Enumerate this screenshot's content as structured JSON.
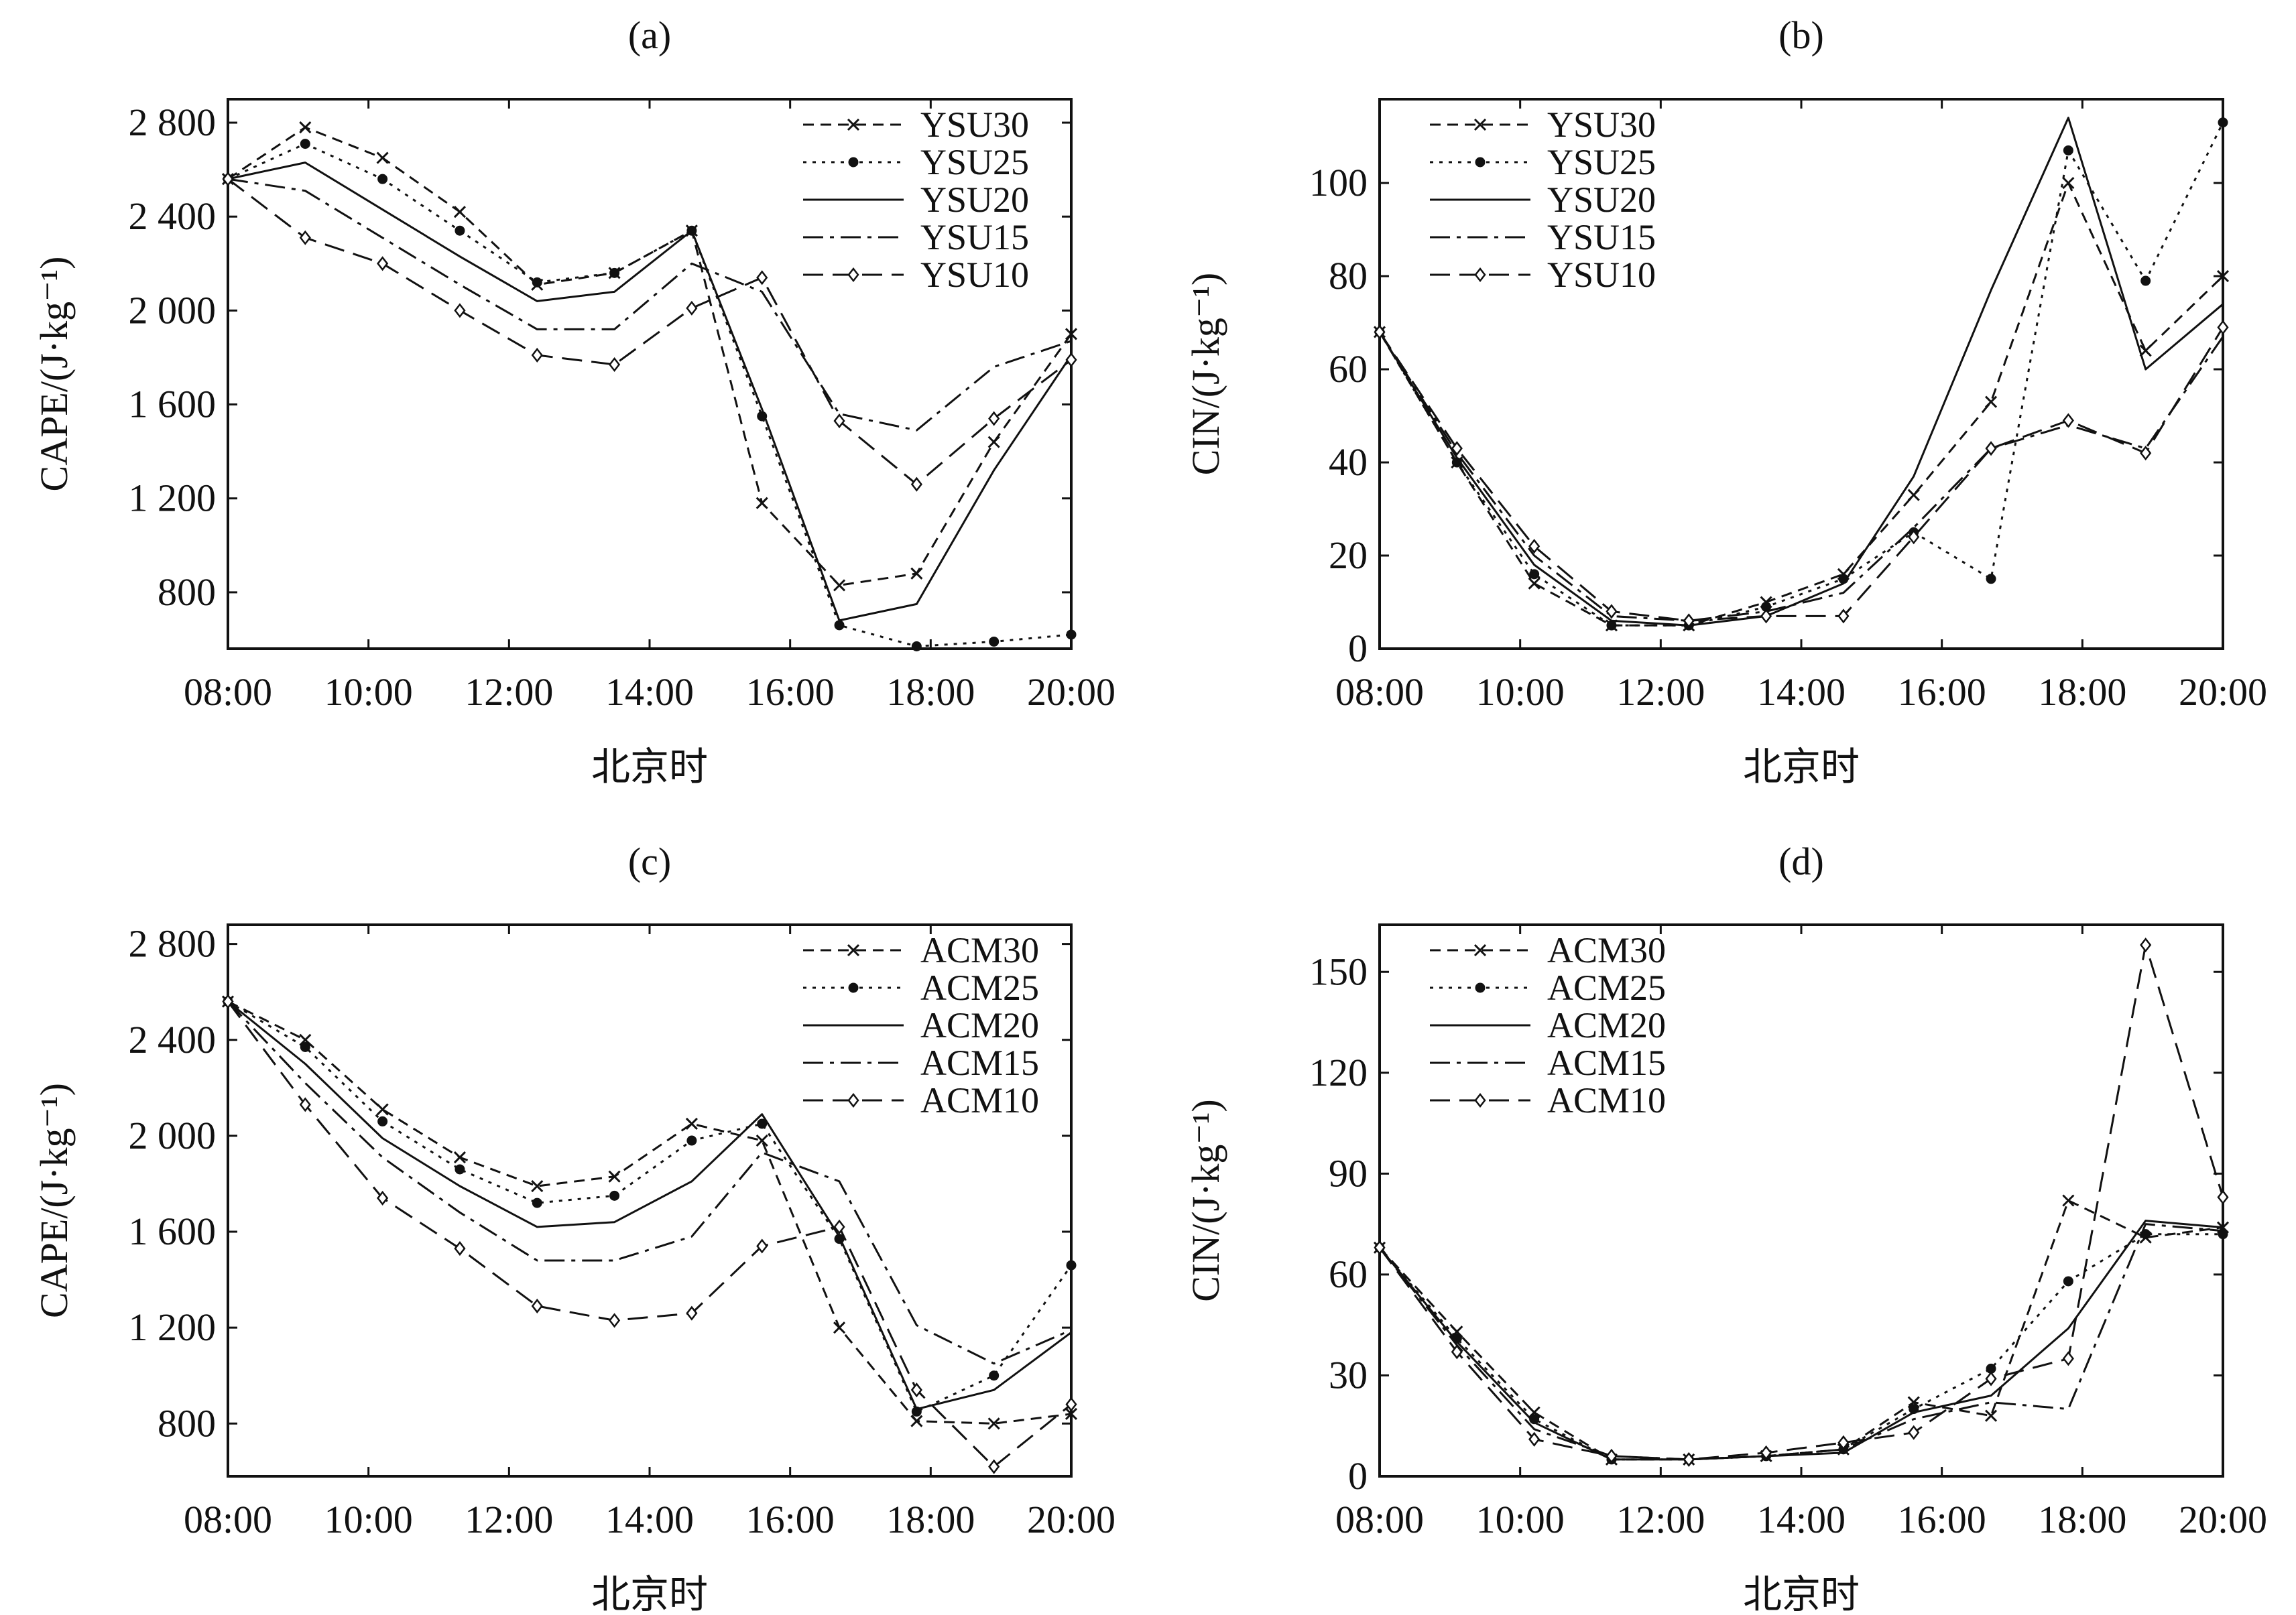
{
  "chart_data": [
    {
      "type": "line",
      "panel": "(a)",
      "xlabel": "北京时",
      "ylabel": "CAPE/(J·kg⁻¹)",
      "y_tick_labels": [
        "800",
        "1 200",
        "1 600",
        "2 000",
        "2 400",
        "2 800"
      ],
      "x_tick_labels": [
        "08:00",
        "10:00",
        "12:00",
        "14:00",
        "16:00",
        "18:00",
        "20:00"
      ],
      "xlim": [
        8,
        20
      ],
      "ylim": [
        560,
        2900
      ],
      "legend_position": "top-right",
      "x": [
        8.0,
        9.1,
        10.2,
        11.3,
        12.4,
        13.5,
        14.6,
        15.6,
        16.7,
        17.8,
        18.9,
        20.0
      ],
      "series": [
        {
          "name": "YSU30",
          "marker": "x",
          "dash": "dash-short",
          "values": [
            2560,
            2780,
            2650,
            2420,
            2110,
            2160,
            2340,
            1180,
            830,
            880,
            1440,
            1900
          ]
        },
        {
          "name": "YSU25",
          "marker": "dot",
          "dash": "dotted",
          "values": [
            2560,
            2710,
            2560,
            2340,
            2120,
            2160,
            2340,
            1550,
            660,
            570,
            590,
            620
          ]
        },
        {
          "name": "YSU20",
          "marker": "none",
          "dash": "solid",
          "values": [
            2560,
            2630,
            2430,
            2230,
            2040,
            2080,
            2340,
            1580,
            680,
            750,
            1320,
            1810
          ]
        },
        {
          "name": "YSU15",
          "marker": "none",
          "dash": "dash-dot",
          "values": [
            2560,
            2510,
            2310,
            2110,
            1920,
            1920,
            2200,
            2080,
            1560,
            1490,
            1760,
            1870
          ]
        },
        {
          "name": "YSU10",
          "marker": "diamond",
          "dash": "dash-long",
          "values": [
            2560,
            2310,
            2200,
            2000,
            1810,
            1770,
            2010,
            2140,
            1530,
            1260,
            1540,
            1790
          ]
        }
      ]
    },
    {
      "type": "line",
      "panel": "(b)",
      "xlabel": "北京时",
      "ylabel": "CIN/(J·kg⁻¹)",
      "y_tick_labels": [
        "0",
        "20",
        "40",
        "60",
        "80",
        "100"
      ],
      "x_tick_labels": [
        "08:00",
        "10:00",
        "12:00",
        "14:00",
        "16:00",
        "18:00",
        "20:00"
      ],
      "xlim": [
        8,
        20
      ],
      "ylim": [
        0,
        118
      ],
      "legend_position": "top-left",
      "x": [
        8.0,
        9.1,
        10.2,
        11.3,
        12.4,
        13.5,
        14.6,
        15.6,
        16.7,
        17.8,
        18.9,
        20.0
      ],
      "series": [
        {
          "name": "YSU30",
          "marker": "x",
          "dash": "dash-short",
          "values": [
            68,
            40,
            14,
            5,
            5,
            10,
            16,
            33,
            53,
            100,
            64,
            80
          ]
        },
        {
          "name": "YSU25",
          "marker": "dot",
          "dash": "dotted",
          "values": [
            68,
            40,
            16,
            5,
            5,
            9,
            15,
            25,
            15,
            107,
            79,
            113
          ]
        },
        {
          "name": "YSU20",
          "marker": "none",
          "dash": "solid",
          "values": [
            68,
            41,
            18,
            6,
            5,
            7,
            14,
            37,
            77,
            114,
            60,
            74
          ]
        },
        {
          "name": "YSU15",
          "marker": "none",
          "dash": "dash-dot",
          "values": [
            68,
            42,
            20,
            7,
            6,
            8,
            12,
            26,
            43,
            48,
            43,
            67
          ]
        },
        {
          "name": "YSU10",
          "marker": "diamond",
          "dash": "dash-long",
          "values": [
            68,
            43,
            22,
            8,
            6,
            7,
            7,
            24,
            43,
            49,
            42,
            69
          ]
        }
      ]
    },
    {
      "type": "line",
      "panel": "(c)",
      "xlabel": "北京时",
      "ylabel": "CAPE/(J·kg⁻¹)",
      "y_tick_labels": [
        "800",
        "1 200",
        "1 600",
        "2 000",
        "2 400",
        "2 800"
      ],
      "x_tick_labels": [
        "08:00",
        "10:00",
        "12:00",
        "14:00",
        "16:00",
        "18:00",
        "20:00"
      ],
      "xlim": [
        8,
        20
      ],
      "ylim": [
        580,
        2880
      ],
      "legend_position": "top-right",
      "x": [
        8.0,
        9.1,
        10.2,
        11.3,
        12.4,
        13.5,
        14.6,
        15.6,
        16.7,
        17.8,
        18.9,
        20.0
      ],
      "series": [
        {
          "name": "ACM30",
          "marker": "x",
          "dash": "dash-short",
          "values": [
            2560,
            2400,
            2110,
            1910,
            1790,
            1830,
            2050,
            1980,
            1200,
            810,
            800,
            840
          ]
        },
        {
          "name": "ACM25",
          "marker": "dot",
          "dash": "dotted",
          "values": [
            2560,
            2370,
            2060,
            1860,
            1720,
            1750,
            1980,
            2050,
            1570,
            850,
            1000,
            1460
          ]
        },
        {
          "name": "ACM20",
          "marker": "none",
          "dash": "solid",
          "values": [
            2560,
            2300,
            1990,
            1790,
            1620,
            1640,
            1810,
            2090,
            1580,
            860,
            940,
            1180
          ]
        },
        {
          "name": "ACM15",
          "marker": "none",
          "dash": "dash-dot",
          "values": [
            2560,
            2220,
            1910,
            1680,
            1480,
            1480,
            1580,
            1930,
            1810,
            1210,
            1050,
            1190
          ]
        },
        {
          "name": "ACM10",
          "marker": "diamond",
          "dash": "dash-long",
          "values": [
            2560,
            2130,
            1740,
            1530,
            1290,
            1230,
            1260,
            1540,
            1620,
            940,
            620,
            880
          ]
        }
      ]
    },
    {
      "type": "line",
      "panel": "(d)",
      "xlabel": "北京时",
      "ylabel": "CIN/(J·kg⁻¹)",
      "y_tick_labels": [
        "0",
        "30",
        "60",
        "90",
        "120",
        "150"
      ],
      "x_tick_labels": [
        "08:00",
        "10:00",
        "12:00",
        "14:00",
        "16:00",
        "18:00",
        "20:00"
      ],
      "xlim": [
        8,
        20
      ],
      "ylim": [
        0,
        164
      ],
      "legend_position": "top-left",
      "x": [
        8.0,
        9.1,
        10.2,
        11.3,
        12.4,
        13.5,
        14.6,
        15.6,
        16.7,
        17.8,
        18.9,
        20.0
      ],
      "series": [
        {
          "name": "ACM30",
          "marker": "x",
          "dash": "dash-short",
          "values": [
            68,
            43,
            19,
            5,
            5,
            6,
            8,
            22,
            18,
            82,
            71,
            74
          ]
        },
        {
          "name": "ACM25",
          "marker": "dot",
          "dash": "dotted",
          "values": [
            68,
            41,
            17,
            5,
            5,
            6,
            8,
            20,
            32,
            58,
            72,
            72
          ]
        },
        {
          "name": "ACM20",
          "marker": "none",
          "dash": "solid",
          "values": [
            68,
            40,
            16,
            5,
            5,
            6,
            7,
            19,
            24,
            44,
            76,
            74
          ]
        },
        {
          "name": "ACM15",
          "marker": "none",
          "dash": "dash-dot",
          "values": [
            68,
            39,
            14,
            6,
            5,
            6,
            8,
            17,
            22,
            20,
            75,
            73
          ]
        },
        {
          "name": "ACM10",
          "marker": "diamond",
          "dash": "dash-long",
          "values": [
            68,
            37,
            11,
            6,
            5,
            7,
            10,
            13,
            29,
            35,
            158,
            83
          ]
        }
      ]
    }
  ]
}
